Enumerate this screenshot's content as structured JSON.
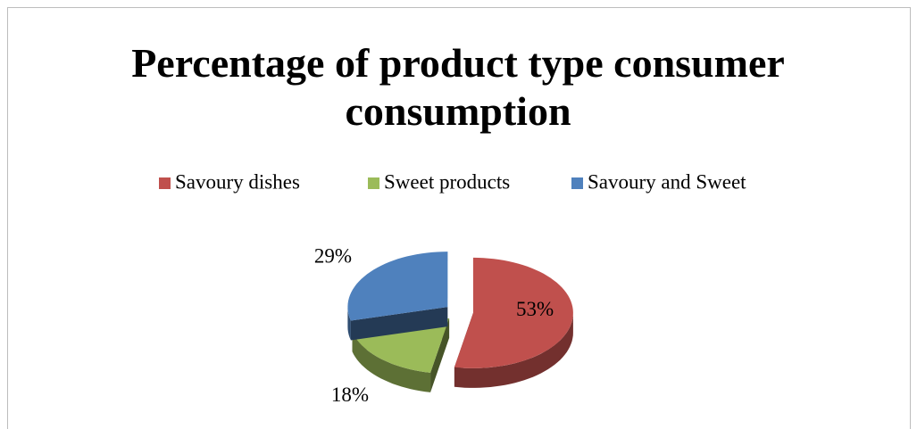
{
  "chart_data": {
    "type": "pie",
    "title": "Percentage of product type consumer consumption",
    "categories": [
      "Savoury dishes",
      "Sweet products",
      "Savoury and Sweet"
    ],
    "values": [
      53,
      18,
      29
    ],
    "value_labels": [
      "53%",
      "18%",
      "29%"
    ],
    "colors": [
      "#c0504d",
      "#9bbb59",
      "#4f81bd"
    ],
    "legend": "top"
  }
}
